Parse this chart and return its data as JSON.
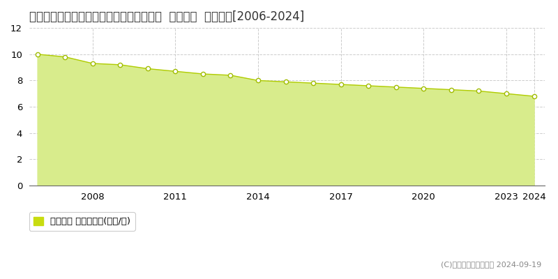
{
  "title": "島根県隠岐郡隠岐の島町有木月無４番７外  公示地価  地価推移[2006-2024]",
  "years": [
    2006,
    2007,
    2008,
    2009,
    2010,
    2011,
    2012,
    2013,
    2014,
    2015,
    2016,
    2017,
    2018,
    2019,
    2020,
    2021,
    2022,
    2023,
    2024
  ],
  "values": [
    10.0,
    9.8,
    9.3,
    9.2,
    8.9,
    8.7,
    8.5,
    8.4,
    8.0,
    7.9,
    7.8,
    7.7,
    7.6,
    7.5,
    7.4,
    7.3,
    7.2,
    7.0,
    6.8
  ],
  "line_color": "#b0cc00",
  "fill_color": "#d8ec8c",
  "marker_face": "#ffffff",
  "marker_edge": "#a0bc00",
  "grid_color": "#cccccc",
  "bg_color": "#ffffff",
  "plot_bg_color": "#ffffff",
  "legend_label": "公示地価 平均坪単価(万円/坪)",
  "legend_color": "#c8dc10",
  "copyright": "(C)土地価格ドットコム 2024-09-19",
  "ylim": [
    0,
    12
  ],
  "yticks": [
    0,
    2,
    4,
    6,
    8,
    10,
    12
  ],
  "xtick_years": [
    2008,
    2011,
    2014,
    2017,
    2020,
    2023,
    2024
  ],
  "title_fontsize": 12,
  "tick_fontsize": 9.5,
  "legend_fontsize": 9.5
}
